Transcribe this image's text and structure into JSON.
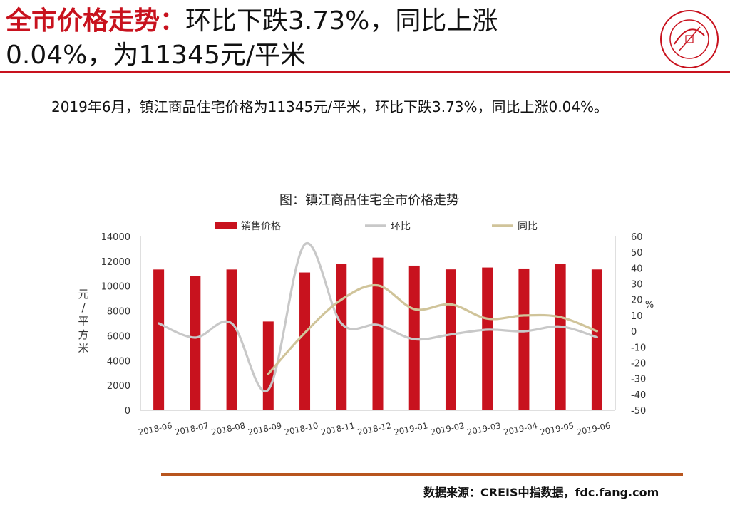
{
  "header": {
    "title_red": "全市价格走势：",
    "title_line1_rest": "环比下跌3.73%，同比上涨",
    "title_line2": "0.04%，为11345元/平米"
  },
  "summary": "2019年6月，镇江商品住宅价格为11345元/平米，环比下跌3.73%，同比上涨0.04%。",
  "source": "数据来源：CREIS中指数据，fdc.fang.com",
  "colors": {
    "brand_red": "#c8121e",
    "mom_line": "#c8c8c8",
    "yoy_line": "#d0c49a",
    "footer_line": "#b8551e"
  },
  "chart_data": {
    "type": "bar",
    "title": "图：镇江商品住宅全市价格走势",
    "categories": [
      "2018-06",
      "2018-07",
      "2018-08",
      "2018-09",
      "2018-10",
      "2018-11",
      "2018-12",
      "2019-01",
      "2019-02",
      "2019-03",
      "2019-04",
      "2019-05",
      "2019-06"
    ],
    "series": [
      {
        "name": "销售价格",
        "type": "bar",
        "axis": "left",
        "color": "#c8121e",
        "values": [
          11340,
          10800,
          11340,
          7150,
          11100,
          11800,
          12300,
          11650,
          11350,
          11500,
          11420,
          11780,
          11345
        ]
      },
      {
        "name": "环比",
        "type": "line",
        "axis": "right",
        "color": "#c8c8c8",
        "values": [
          5,
          -4,
          5,
          -37,
          55,
          5,
          4,
          -5,
          -2,
          1,
          0,
          3,
          -3.73
        ]
      },
      {
        "name": "同比",
        "type": "line",
        "axis": "right",
        "color": "#d0c49a",
        "values": [
          null,
          null,
          null,
          -27,
          -1,
          20,
          29,
          14,
          17,
          8,
          10,
          9,
          0.04
        ]
      }
    ],
    "ylabel_left": "元/平方米",
    "ylabel_right": "%",
    "ylim_left": [
      0,
      14000
    ],
    "ylim_right": [
      -50,
      60
    ],
    "yticks_left": [
      0,
      2000,
      4000,
      6000,
      8000,
      10000,
      12000,
      14000
    ],
    "yticks_right": [
      -50,
      -40,
      -30,
      -20,
      -10,
      0,
      10,
      20,
      30,
      40,
      50,
      60
    ],
    "grid": false,
    "legend_position": "top"
  },
  "seal": {
    "icon": "china-index-academy-seal-icon",
    "text": "中国指数研究院 CHINA INDEX ACADEMY"
  }
}
